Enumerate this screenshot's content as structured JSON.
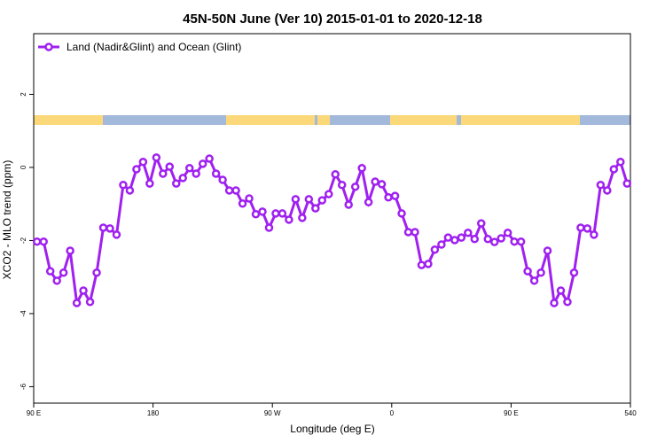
{
  "chart_data": {
    "type": "line",
    "title": "45N-50N June (Ver 10)   2015-01-01 to 2020-12-18",
    "x_label": "Longitude (deg E)",
    "y_label": "XCO2 - MLO trend (ppm)",
    "x": [
      92.5,
      97.5,
      102.5,
      107.5,
      112.5,
      117.5,
      122.5,
      127.5,
      132.5,
      137.5,
      142.5,
      147.5,
      152.5,
      157.5,
      162.5,
      167.5,
      172.5,
      177.5,
      182.5,
      187.5,
      192.5,
      197.5,
      202.5,
      207.5,
      212.5,
      217.5,
      222.5,
      227.5,
      232.5,
      237.5,
      242.5,
      247.5,
      252.5,
      257.5,
      262.5,
      267.5,
      272.5,
      277.5,
      282.5,
      287.5,
      292.5,
      297.5,
      302.5,
      307.5,
      312.5,
      317.5,
      322.5,
      327.5,
      332.5,
      337.5,
      342.5,
      347.5,
      352.5,
      357.5,
      362.5,
      367.5,
      372.5,
      377.5,
      382.5,
      387.5,
      392.5,
      397.5,
      402.5,
      407.5,
      412.5,
      417.5,
      422.5,
      427.5,
      432.5,
      437.5,
      442.5,
      447.5,
      452.5,
      457.5,
      462.5,
      467.5,
      472.5,
      477.5,
      482.5,
      487.5,
      492.5,
      497.5,
      502.5,
      507.5,
      512.5,
      517.5,
      522.5,
      527.5,
      532.5,
      537.5
    ],
    "series": [
      {
        "name": "Land (Nadir&Glint) and Ocean (Glint)",
        "color": "#a020f0",
        "values": [
          -2.03,
          -2.03,
          -2.84,
          -3.1,
          -2.88,
          -2.28,
          -3.71,
          -3.37,
          -3.68,
          -2.88,
          -1.65,
          -1.67,
          -1.84,
          -0.48,
          -0.63,
          -0.05,
          0.15,
          -0.44,
          0.27,
          -0.17,
          0.02,
          -0.44,
          -0.29,
          -0.02,
          -0.17,
          0.1,
          0.24,
          -0.17,
          -0.34,
          -0.63,
          -0.63,
          -0.99,
          -0.85,
          -1.28,
          -1.21,
          -1.65,
          -1.26,
          -1.26,
          -1.43,
          -0.87,
          -1.38,
          -0.87,
          -1.12,
          -0.9,
          -0.73,
          -0.19,
          -0.48,
          -1.02,
          -0.53,
          -0.02,
          -0.95,
          -0.39,
          -0.46,
          -0.82,
          -0.78,
          -1.26,
          -1.77,
          -1.77,
          -2.67,
          -2.64,
          -2.25,
          -2.11,
          -1.92,
          -1.99,
          -1.92,
          -1.79,
          -1.96,
          -1.53,
          -1.96,
          -2.04,
          -1.94,
          -1.79,
          -2.03,
          -2.03,
          -2.84,
          -3.1,
          -2.88,
          -2.28,
          -3.71,
          -3.37,
          -3.68,
          -2.88,
          -1.65,
          -1.67,
          -1.84,
          -0.48,
          -0.63,
          -0.05,
          0.15,
          -0.44
        ]
      }
    ],
    "xlim": [
      90,
      540
    ],
    "xticks": [
      {
        "value": 90,
        "label": "90 E"
      },
      180,
      {
        "value": 270,
        "label": "90 W"
      },
      {
        "value": 360,
        "label": "0"
      },
      {
        "value": 450,
        "label": "90 E"
      },
      540
    ],
    "ylim": [
      -6.45,
      3.66
    ],
    "yticks": [
      -6,
      -4,
      -2,
      0,
      2
    ],
    "legend": "top-left"
  }
}
